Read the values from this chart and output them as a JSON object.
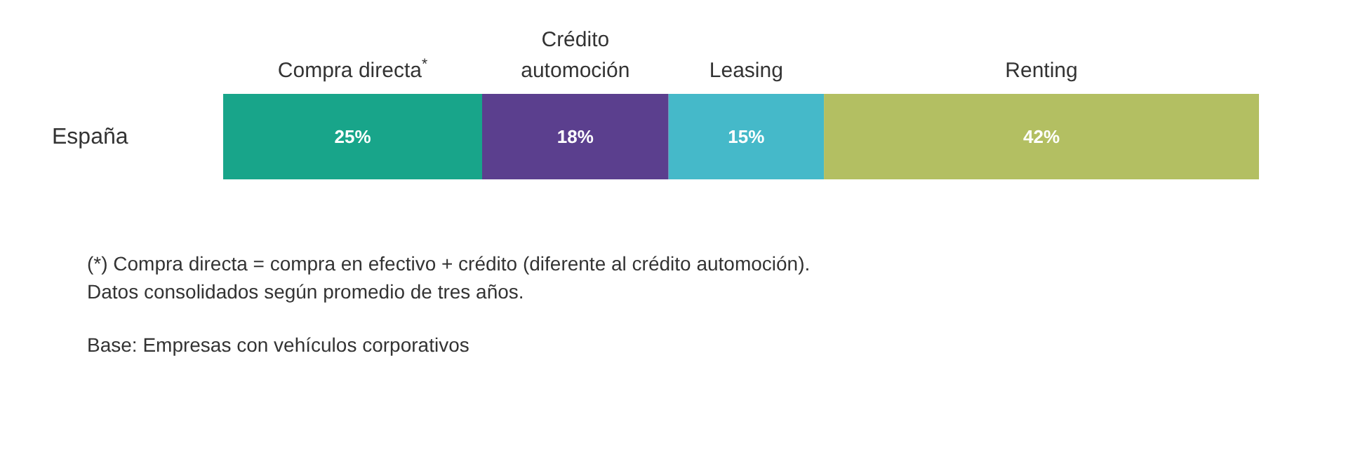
{
  "chart_data": {
    "type": "bar",
    "orientation": "horizontal",
    "stacked": true,
    "categories": [
      "España"
    ],
    "series": [
      {
        "name": "Compra directa$^{*}$",
        "color": "#18a58a",
        "values": [
          25
        ],
        "value_labels": [
          "25%"
        ]
      },
      {
        "name": "Crédito automoción",
        "color": "#5b3f8e",
        "values": [
          18
        ],
        "value_labels": [
          "18%"
        ]
      },
      {
        "name": "Leasing",
        "color": "#45b9c9",
        "values": [
          15
        ],
        "value_labels": [
          "15%"
        ]
      },
      {
        "name": "Renting",
        "color": "#b3bf62",
        "values": [
          42
        ],
        "value_labels": [
          "42%"
        ]
      }
    ],
    "annotations": [
      "(*) Compra directa = compra en efectivo + crédito (diferente al crédito automoción).",
      "Datos consolidados según promedio de tres años.",
      "Base: Empresas con vehículos corporativos"
    ]
  }
}
